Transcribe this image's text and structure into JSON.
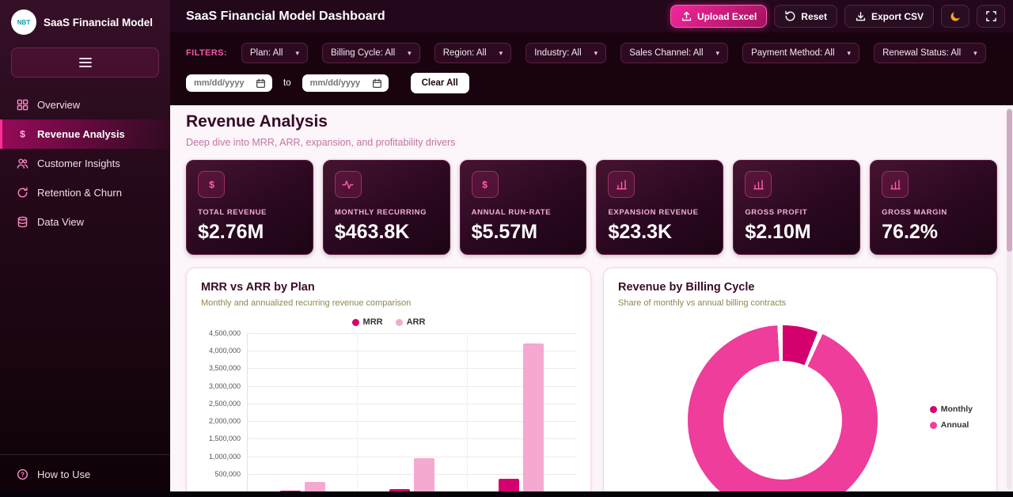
{
  "sidebar": {
    "logo_text": "NBT",
    "app_title": "SaaS Financial Model",
    "items": [
      {
        "label": "Overview",
        "icon": "grid-icon",
        "active": false
      },
      {
        "label": "Revenue Analysis",
        "icon": "dollar-icon",
        "active": true
      },
      {
        "label": "Customer Insights",
        "icon": "users-icon",
        "active": false
      },
      {
        "label": "Retention & Churn",
        "icon": "refresh-icon",
        "active": false
      },
      {
        "label": "Data View",
        "icon": "database-icon",
        "active": false
      }
    ],
    "footer": {
      "label": "How to Use",
      "icon": "help-icon"
    }
  },
  "header": {
    "title": "SaaS Financial Model Dashboard",
    "upload_button": "Upload Excel",
    "reset_button": "Reset",
    "export_button": "Export CSV"
  },
  "filters": {
    "label": "FILTERS:",
    "dropdowns": [
      "Plan: All",
      "Billing Cycle: All",
      "Region: All",
      "Industry: All",
      "Sales Channel: All",
      "Payment Method: All",
      "Renewal Status: All"
    ],
    "date_from_placeholder": "mm/dd/yyyy",
    "date_to_placeholder": "mm/dd/yyyy",
    "separator": "to",
    "clear_button": "Clear All"
  },
  "page": {
    "title": "Revenue Analysis",
    "subtitle": "Deep dive into MRR, ARR, expansion, and profitability drivers"
  },
  "kpis": [
    {
      "label": "TOTAL REVENUE",
      "value": "$2.76M",
      "icon": "dollar-icon"
    },
    {
      "label": "MONTHLY RECURRING",
      "value": "$463.8K",
      "icon": "activity-icon"
    },
    {
      "label": "ANNUAL RUN-RATE",
      "value": "$5.57M",
      "icon": "dollar-icon"
    },
    {
      "label": "EXPANSION REVENUE",
      "value": "$23.3K",
      "icon": "bar-chart-icon"
    },
    {
      "label": "GROSS PROFIT",
      "value": "$2.10M",
      "icon": "bar-chart-icon"
    },
    {
      "label": "GROSS MARGIN",
      "value": "76.2%",
      "icon": "bar-chart-icon"
    }
  ],
  "chart_data": [
    {
      "type": "bar",
      "title": "MRR vs ARR by Plan",
      "subtitle": "Monthly and annualized recurring revenue comparison",
      "categories": [
        "",
        "",
        ""
      ],
      "series": [
        {
          "name": "MRR",
          "color": "#d4006e",
          "values": [
            22000,
            78000,
            360000
          ]
        },
        {
          "name": "ARR",
          "color": "#f5a8d0",
          "values": [
            270000,
            950000,
            4200000
          ]
        }
      ],
      "ylim": [
        0,
        4500000
      ],
      "ytick_step": 500000,
      "legend_position": "top",
      "grid": true
    },
    {
      "type": "pie",
      "donut": true,
      "title": "Revenue by Billing Cycle",
      "subtitle": "Share of monthly vs annual billing contracts",
      "labels": [
        "Monthly",
        "Annual"
      ],
      "values": [
        6,
        94
      ],
      "colors": [
        "#d4006e",
        "#ee3d9b"
      ],
      "legend_position": "right"
    }
  ],
  "colors": {
    "accent": "#ec0989",
    "mrr": "#d4006e",
    "arr": "#f5a8d0",
    "monthly": "#d4006e",
    "annual": "#ee3d9b"
  }
}
